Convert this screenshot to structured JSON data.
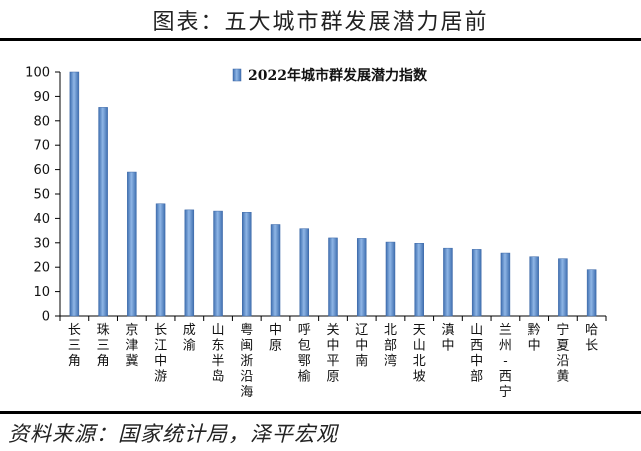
{
  "header": {
    "title": "图表：五大城市群发展潜力居前"
  },
  "footer": {
    "source": "资料来源：国家统计局，泽平宏观"
  },
  "chart_data": {
    "type": "bar",
    "title": "",
    "xlabel": "",
    "ylabel": "",
    "ylim": [
      0,
      100
    ],
    "yticks": [
      0,
      10,
      20,
      30,
      40,
      50,
      60,
      70,
      80,
      90,
      100
    ],
    "grid": false,
    "legend": "top-right",
    "bar_color": "#5b8fd0",
    "categories": [
      "长三角",
      "珠三角",
      "京津冀",
      "长江中游",
      "成渝",
      "山东半岛",
      "粤闽浙沿海",
      "中原",
      "呼包鄂榆",
      "关中平原",
      "辽中南",
      "北部湾",
      "天山北坡",
      "滇中",
      "山西中部",
      "兰州-西宁",
      "黔中",
      "宁夏沿黄",
      "哈长"
    ],
    "series": [
      {
        "name": "2022年城市群发展潜力指数",
        "values": [
          100,
          85.5,
          59,
          46,
          43.5,
          43,
          42.5,
          37.5,
          35.8,
          32,
          31.8,
          30.3,
          29.8,
          27.8,
          27.3,
          25.8,
          24.3,
          23.5,
          19
        ]
      }
    ]
  }
}
